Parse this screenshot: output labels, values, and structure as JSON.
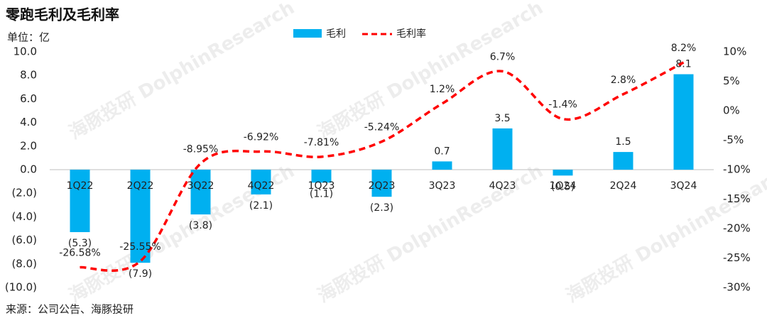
{
  "chart_data": {
    "type": "bar+line",
    "title": "零跑毛利及毛利率",
    "subtitle": "单位：亿",
    "source": "来源：公司公告、海豚投研",
    "watermark": "海豚投研 DolphinResearch",
    "categories": [
      "1Q22",
      "2Q22",
      "3Q22",
      "4Q22",
      "1Q23",
      "2Q23",
      "3Q23",
      "4Q23",
      "1Q24",
      "2Q24",
      "3Q24"
    ],
    "series": [
      {
        "name": "毛利",
        "type": "bar",
        "color": "#00b0f0",
        "negative_label_color": "#ff0000",
        "values": [
          -5.3,
          -7.9,
          -3.8,
          -2.1,
          -1.1,
          -2.3,
          0.7,
          3.5,
          -0.5,
          1.5,
          8.1
        ],
        "value_labels": [
          "(5.3)",
          "(7.9)",
          "(3.8)",
          "(2.1)",
          "(1.1)",
          "(2.3)",
          "0.7",
          "3.5",
          "(0.5)",
          "1.5",
          "8.1"
        ]
      },
      {
        "name": "毛利率",
        "type": "line",
        "axis": "y2",
        "color": "#ff0000",
        "dashed": true,
        "smooth": true,
        "values": [
          -26.58,
          -25.55,
          -8.95,
          -6.92,
          -7.81,
          -5.24,
          1.2,
          6.7,
          -1.4,
          2.8,
          8.2
        ],
        "value_labels": [
          "-26.58%",
          "-25.55%",
          "-8.95%",
          "-6.92%",
          "-7.81%",
          "-5.24%",
          "1.2%",
          "6.7%",
          "-1.4%",
          "2.8%",
          "8.2%"
        ]
      }
    ],
    "ylim": [
      -10,
      10
    ],
    "yticks": [
      {
        "value": -10,
        "label": "(10.0)"
      },
      {
        "value": -8,
        "label": "(8.0)"
      },
      {
        "value": -6,
        "label": "(6.0)"
      },
      {
        "value": -4,
        "label": "(4.0)"
      },
      {
        "value": -2,
        "label": "(2.0)"
      },
      {
        "value": 0,
        "label": "0.0"
      },
      {
        "value": 2,
        "label": "2.0"
      },
      {
        "value": 4,
        "label": "4.0"
      },
      {
        "value": 6,
        "label": "6.0"
      },
      {
        "value": 8,
        "label": "8.0"
      },
      {
        "value": 10,
        "label": "10.0"
      }
    ],
    "y2lim": [
      -30,
      10
    ],
    "y2ticks": [
      {
        "value": -30,
        "label": "-30%"
      },
      {
        "value": -25,
        "label": "-25%"
      },
      {
        "value": -20,
        "label": "-20%"
      },
      {
        "value": -15,
        "label": "-15%"
      },
      {
        "value": -10,
        "label": "-10%"
      },
      {
        "value": -5,
        "label": "-5%"
      },
      {
        "value": 0,
        "label": "0%"
      },
      {
        "value": 5,
        "label": "5%"
      },
      {
        "value": 10,
        "label": "10%"
      }
    ],
    "legend": "top"
  }
}
